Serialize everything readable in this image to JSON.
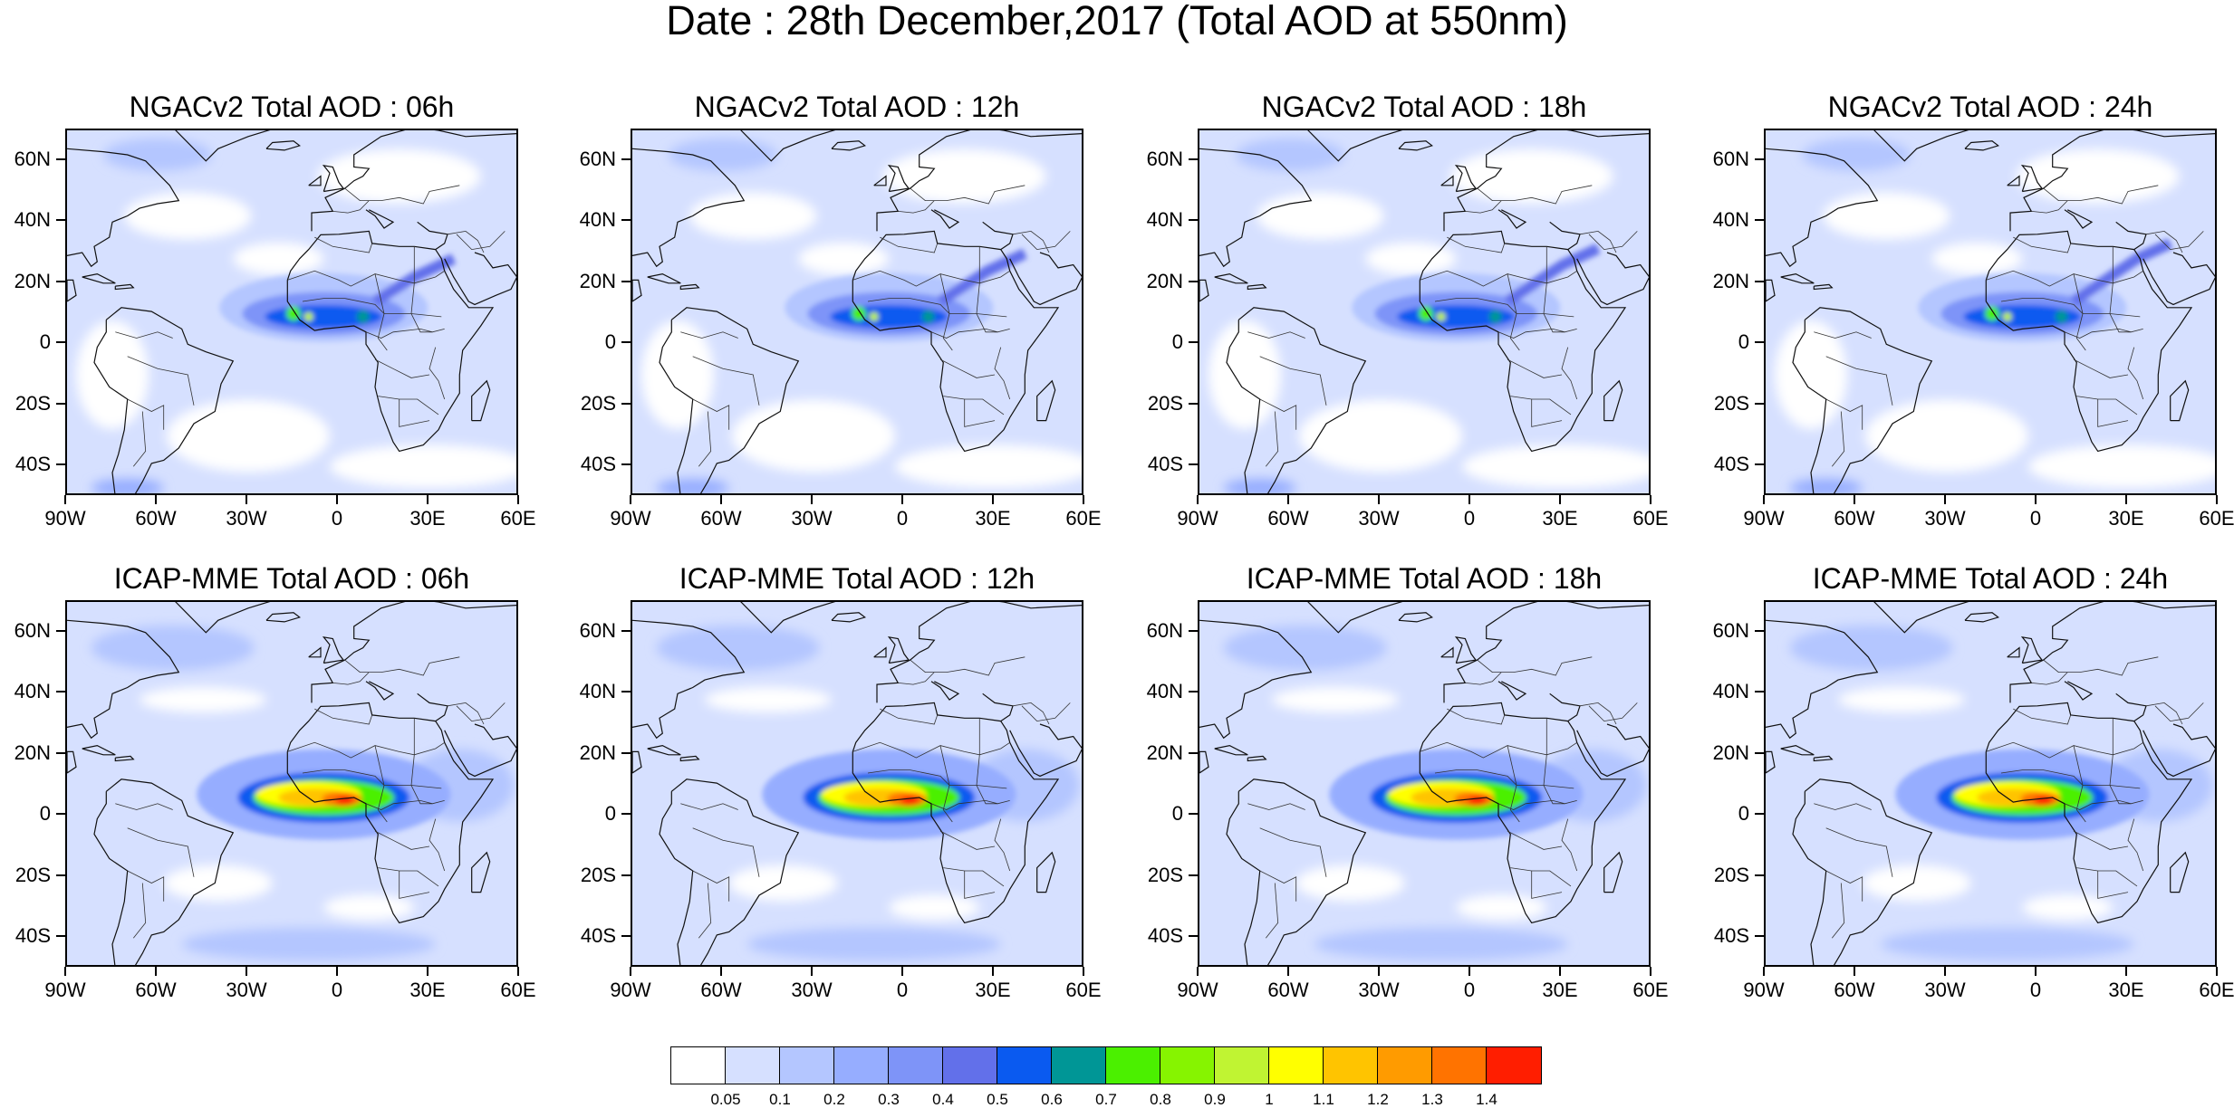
{
  "title": "Date : 28th December,2017 (Total AOD at 550nm)",
  "axes": {
    "lat_labels": [
      "60N",
      "40N",
      "20N",
      "0",
      "20S",
      "40S"
    ],
    "lon_labels": [
      "90W",
      "60W",
      "30W",
      "0",
      "30E",
      "60E"
    ],
    "lat_values": [
      60,
      40,
      20,
      0,
      -20,
      -40
    ],
    "lon_values": [
      -90,
      -60,
      -30,
      0,
      30,
      60
    ],
    "lat_range": [
      -50,
      70
    ],
    "lon_range": [
      -90,
      60
    ]
  },
  "panels": [
    {
      "title": "NGACv2 Total AOD : 06h",
      "model": "NGACv2",
      "hour": 6
    },
    {
      "title": "NGACv2 Total AOD : 12h",
      "model": "NGACv2",
      "hour": 12
    },
    {
      "title": "NGACv2 Total AOD : 18h",
      "model": "NGACv2",
      "hour": 18
    },
    {
      "title": "NGACv2 Total AOD : 24h",
      "model": "NGACv2",
      "hour": 24
    },
    {
      "title": "ICAP-MME Total AOD : 06h",
      "model": "ICAP-MME",
      "hour": 6
    },
    {
      "title": "ICAP-MME Total AOD : 12h",
      "model": "ICAP-MME",
      "hour": 12
    },
    {
      "title": "ICAP-MME Total AOD : 18h",
      "model": "ICAP-MME",
      "hour": 18
    },
    {
      "title": "ICAP-MME Total AOD : 24h",
      "model": "ICAP-MME",
      "hour": 24
    }
  ],
  "colorbar": {
    "labels": [
      "0.05",
      "0.1",
      "0.2",
      "0.3",
      "0.4",
      "0.5",
      "0.6",
      "0.7",
      "0.8",
      "0.9",
      "1",
      "1.1",
      "1.2",
      "1.3",
      "1.4"
    ],
    "colors": [
      "#ffffff",
      "#d6e0ff",
      "#b4c6ff",
      "#96adff",
      "#7e94f8",
      "#6270ea",
      "#0a5af0",
      "#009696",
      "#4bf000",
      "#86f400",
      "#c0f432",
      "#ffff00",
      "#ffc400",
      "#ff9b00",
      "#ff7300",
      "#ff1e00"
    ]
  }
}
